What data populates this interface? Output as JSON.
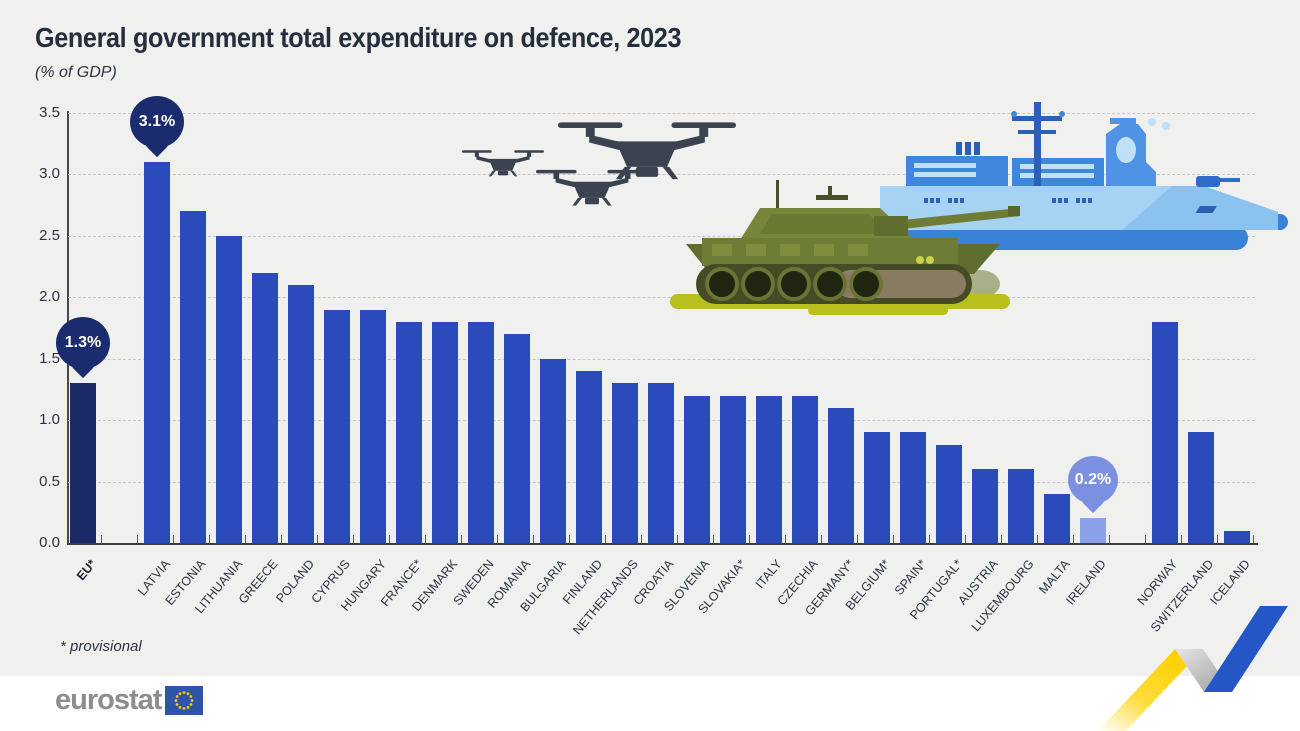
{
  "header": {
    "title": "General government total expenditure on defence, 2023",
    "subtitle": "(% of GDP)"
  },
  "footnote": "* provisional",
  "logo": {
    "brand": "eurostat"
  },
  "chart_data": {
    "type": "bar",
    "title": "General government total expenditure on defence, 2023",
    "unit": "% of GDP",
    "ylim": [
      0,
      3.5
    ],
    "ytick_labels": [
      "0.0",
      "0.5",
      "1.0",
      "1.5",
      "2.0",
      "2.5",
      "3.0",
      "3.5"
    ],
    "grid": "horizontal-dashed",
    "legend": "none",
    "bars": [
      {
        "label": "EU*",
        "value": 1.3,
        "group": "eu_aggregate",
        "variant": "dark",
        "bold": true
      },
      {
        "label": "LATVIA",
        "value": 3.1,
        "group": "eu_members"
      },
      {
        "label": "ESTONIA",
        "value": 2.7,
        "group": "eu_members"
      },
      {
        "label": "LITHUANIA",
        "value": 2.5,
        "group": "eu_members"
      },
      {
        "label": "GREECE",
        "value": 2.2,
        "group": "eu_members"
      },
      {
        "label": "POLAND",
        "value": 2.1,
        "group": "eu_members"
      },
      {
        "label": "CYPRUS",
        "value": 1.9,
        "group": "eu_members"
      },
      {
        "label": "HUNGARY",
        "value": 1.9,
        "group": "eu_members"
      },
      {
        "label": "FRANCE*",
        "value": 1.8,
        "group": "eu_members"
      },
      {
        "label": "DENMARK",
        "value": 1.8,
        "group": "eu_members"
      },
      {
        "label": "SWEDEN",
        "value": 1.8,
        "group": "eu_members"
      },
      {
        "label": "ROMANIA",
        "value": 1.7,
        "group": "eu_members"
      },
      {
        "label": "BULGARIA",
        "value": 1.5,
        "group": "eu_members"
      },
      {
        "label": "FINLAND",
        "value": 1.4,
        "group": "eu_members"
      },
      {
        "label": "NETHERLANDS",
        "value": 1.3,
        "group": "eu_members"
      },
      {
        "label": "CROATIA",
        "value": 1.3,
        "group": "eu_members"
      },
      {
        "label": "SLOVENIA",
        "value": 1.2,
        "group": "eu_members"
      },
      {
        "label": "SLOVAKIA*",
        "value": 1.2,
        "group": "eu_members"
      },
      {
        "label": "ITALY",
        "value": 1.2,
        "group": "eu_members"
      },
      {
        "label": "CZECHIA",
        "value": 1.2,
        "group": "eu_members"
      },
      {
        "label": "GERMANY*",
        "value": 1.1,
        "group": "eu_members"
      },
      {
        "label": "BELGIUM*",
        "value": 0.9,
        "group": "eu_members"
      },
      {
        "label": "SPAIN*",
        "value": 0.9,
        "group": "eu_members"
      },
      {
        "label": "PORTUGAL*",
        "value": 0.8,
        "group": "eu_members"
      },
      {
        "label": "AUSTRIA",
        "value": 0.6,
        "group": "eu_members"
      },
      {
        "label": "LUXEMBOURG",
        "value": 0.6,
        "group": "eu_members"
      },
      {
        "label": "MALTA",
        "value": 0.4,
        "group": "eu_members"
      },
      {
        "label": "IRELAND",
        "value": 0.2,
        "group": "eu_members",
        "variant": "light"
      },
      {
        "label": "NORWAY",
        "value": 1.8,
        "group": "efta"
      },
      {
        "label": "SWITZERLAND",
        "value": 0.9,
        "group": "efta"
      },
      {
        "label": "ICELAND",
        "value": 0.1,
        "group": "efta"
      }
    ],
    "annotations": [
      {
        "target": "EU*",
        "text": "1.3%",
        "variant": "dark"
      },
      {
        "target": "LATVIA",
        "text": "3.1%",
        "variant": "dark"
      },
      {
        "target": "IRELAND",
        "text": "0.2%",
        "variant": "light"
      }
    ],
    "colors": {
      "bar": "#2b4abc",
      "bar_dark": "#1a2a66",
      "bar_light": "#8aa0e8",
      "callout_dark": "#1b2c6e",
      "callout_light": "#7b90e0",
      "axis": "#3f3f3f",
      "grid": "#c7c7c5",
      "text": "#242e3c"
    }
  },
  "decorations": {
    "drones": "quadcopter-drones",
    "tank": "battle-tank",
    "ship": "navy-warship",
    "ribbon": "yellow-blue-zigzag-ribbon"
  }
}
